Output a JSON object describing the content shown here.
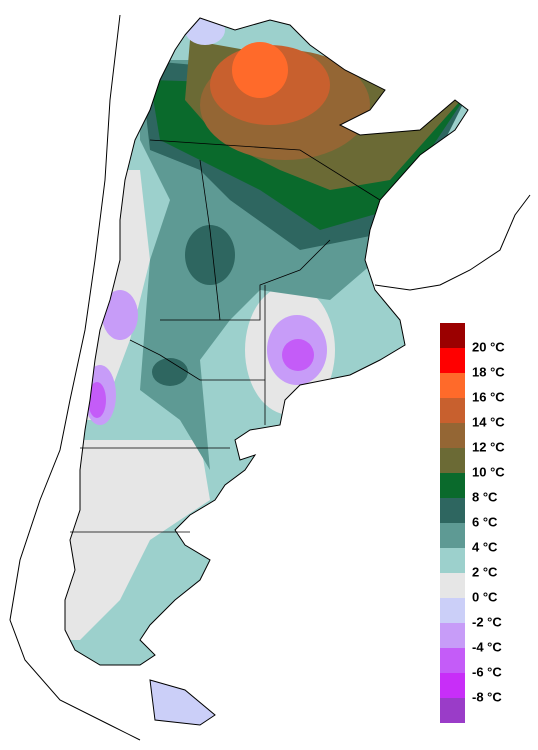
{
  "legend": {
    "colors": [
      "#9b0000",
      "#ff0000",
      "#ff6a2a",
      "#c8602e",
      "#946634",
      "#6b6a35",
      "#0a6a2c",
      "#2e6660",
      "#5e9a94",
      "#9cd0cc",
      "#e6e6e6",
      "#cbcff8",
      "#c79cf8",
      "#c45cf8",
      "#c82ef8",
      "#9a3cc8"
    ],
    "labels": [
      "20 °C",
      "18 °C",
      "16 °C",
      "14 °C",
      "12 °C",
      "10 °C",
      "8 °C",
      "6 °C",
      "4 °C",
      "2 °C",
      "0 °C",
      "-2 °C",
      "-4 °C",
      "-6 °C",
      "-8 °C"
    ]
  }
}
